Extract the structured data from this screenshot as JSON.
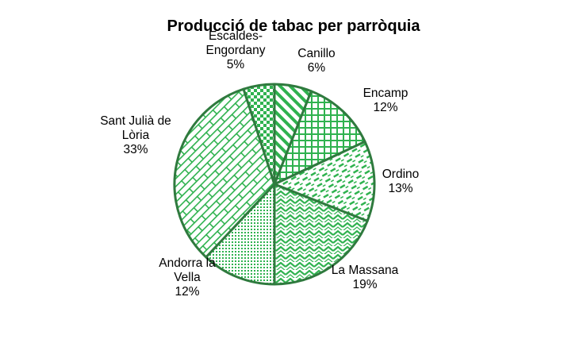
{
  "chart_data": {
    "type": "pie",
    "title": "Producció de tabac per parròquia",
    "slices": [
      {
        "label_lines": [
          "Canillo"
        ],
        "value": 6,
        "value_label": "6%",
        "pattern": "diag"
      },
      {
        "label_lines": [
          "Encamp"
        ],
        "value": 12,
        "value_label": "12%",
        "pattern": "grid"
      },
      {
        "label_lines": [
          "Ordino"
        ],
        "value": 13,
        "value_label": "13%",
        "pattern": "dash"
      },
      {
        "label_lines": [
          "La Massana"
        ],
        "value": 19,
        "value_label": "19%",
        "pattern": "zigzag"
      },
      {
        "label_lines": [
          "Andorra la",
          "Vella"
        ],
        "value": 12,
        "value_label": "12%",
        "pattern": "dots"
      },
      {
        "label_lines": [
          "Sant Julià de",
          "Lòria"
        ],
        "value": 33,
        "value_label": "33%",
        "pattern": "brick"
      },
      {
        "label_lines": [
          "Escaldes-",
          "Engordany"
        ],
        "value": 5,
        "value_label": "5%",
        "pattern": "check"
      }
    ],
    "colors": {
      "fill": "#2fb24f",
      "edge": "#2f7a3e",
      "background": "#ffffff"
    }
  }
}
